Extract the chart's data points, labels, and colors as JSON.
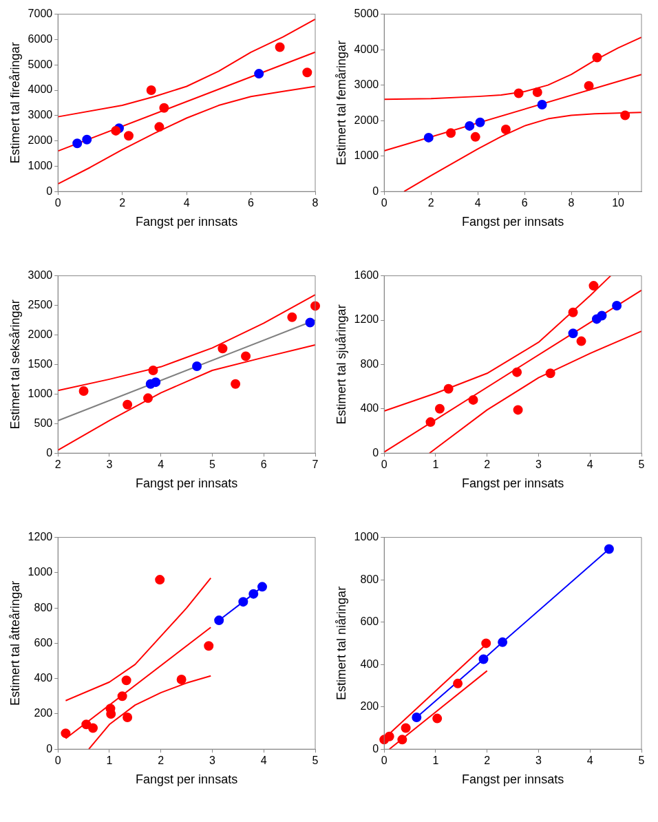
{
  "chart_data": [
    {
      "type": "scatter",
      "xlabel": "Fangst per innsats",
      "ylabel": "Estimert tal fireåringar",
      "xlim": [
        0,
        8
      ],
      "ylim": [
        0,
        7000
      ],
      "xticks": [
        0,
        2,
        4,
        6,
        8
      ],
      "yticks": [
        0,
        1000,
        2000,
        3000,
        4000,
        5000,
        6000,
        7000
      ],
      "grid": false,
      "series": [
        {
          "type": "line",
          "color": "#ff0000",
          "marker": "none",
          "x": [
            0,
            2,
            3,
            4,
            5,
            6,
            7,
            8
          ],
          "values": [
            2950,
            3400,
            3750,
            4150,
            4750,
            5500,
            6100,
            6800
          ]
        },
        {
          "type": "line",
          "color": "#ff0000",
          "marker": "none",
          "x": [
            0,
            1,
            2,
            3,
            4,
            5,
            6,
            7,
            8
          ],
          "values": [
            300,
            950,
            1650,
            2300,
            2900,
            3400,
            3750,
            3950,
            4150
          ]
        },
        {
          "type": "line",
          "color": "#ff0000",
          "marker": "none",
          "x": [
            0,
            8
          ],
          "values": [
            1600,
            5500
          ]
        },
        {
          "type": "scatter",
          "color": "#ff0000",
          "marker": "circle",
          "x": [
            1.8,
            2.2,
            2.9,
            3.15,
            3.3,
            6.9,
            7.75
          ],
          "values": [
            2400,
            2200,
            4000,
            2550,
            3300,
            5700,
            4700
          ]
        },
        {
          "type": "scatter",
          "color": "#0000ff",
          "marker": "circle",
          "x": [
            0.6,
            0.9,
            1.9,
            6.25
          ],
          "values": [
            1900,
            2050,
            2500,
            4650
          ]
        }
      ]
    },
    {
      "type": "scatter",
      "xlabel": "Fangst per innsats",
      "ylabel": "Estimert tal femåringar",
      "xlim": [
        0,
        11
      ],
      "ylim": [
        0,
        5000
      ],
      "xticks": [
        0,
        2,
        4,
        6,
        8,
        10
      ],
      "yticks": [
        0,
        1000,
        2000,
        3000,
        4000,
        5000
      ],
      "grid": false,
      "series": [
        {
          "type": "line",
          "color": "#ff0000",
          "marker": "none",
          "x": [
            0,
            2,
            4,
            5,
            6,
            7,
            8,
            9,
            10,
            11
          ],
          "values": [
            2600,
            2620,
            2680,
            2720,
            2820,
            3000,
            3300,
            3700,
            4050,
            4350
          ]
        },
        {
          "type": "line",
          "color": "#ff0000",
          "marker": "none",
          "x": [
            0.85,
            2,
            4,
            5,
            6,
            7,
            8,
            9,
            10,
            11
          ],
          "values": [
            0,
            450,
            1200,
            1550,
            1850,
            2050,
            2150,
            2190,
            2210,
            2230
          ]
        },
        {
          "type": "line",
          "color": "#ff0000",
          "marker": "none",
          "x": [
            0,
            11
          ],
          "values": [
            1150,
            3300
          ]
        },
        {
          "type": "scatter",
          "color": "#ff0000",
          "marker": "circle",
          "x": [
            2.85,
            3.9,
            5.2,
            5.75,
            6.55,
            8.75,
            9.1,
            10.3
          ],
          "values": [
            1650,
            1540,
            1750,
            2770,
            2800,
            2980,
            3780,
            2150
          ]
        },
        {
          "type": "scatter",
          "color": "#0000ff",
          "marker": "circle",
          "x": [
            1.9,
            3.65,
            4.1,
            6.75
          ],
          "values": [
            1520,
            1850,
            1950,
            2450
          ]
        }
      ]
    },
    {
      "type": "scatter",
      "xlabel": "Fangst per innsats",
      "ylabel": "Estimert tal seksåringar",
      "xlim": [
        2,
        7
      ],
      "ylim": [
        0,
        3000
      ],
      "xticks": [
        2,
        3,
        4,
        5,
        6,
        7
      ],
      "yticks": [
        0,
        500,
        1000,
        1500,
        2000,
        2500,
        3000
      ],
      "grid": false,
      "series": [
        {
          "type": "line",
          "color": "#ff0000",
          "marker": "none",
          "x": [
            2,
            3,
            4,
            5,
            6,
            7
          ],
          "values": [
            1060,
            1250,
            1460,
            1780,
            2200,
            2680
          ]
        },
        {
          "type": "line",
          "color": "#ff0000",
          "marker": "none",
          "x": [
            2,
            3,
            4,
            5,
            6,
            7
          ],
          "values": [
            50,
            550,
            1020,
            1400,
            1620,
            1830
          ]
        },
        {
          "type": "line",
          "color": "#808080",
          "marker": "none",
          "x": [
            2,
            7
          ],
          "values": [
            550,
            2250
          ]
        },
        {
          "type": "scatter",
          "color": "#ff0000",
          "marker": "circle",
          "x": [
            2.5,
            3.35,
            3.75,
            3.85,
            5.2,
            5.45,
            5.65,
            6.55,
            7
          ],
          "values": [
            1050,
            820,
            930,
            1400,
            1770,
            1170,
            1640,
            2300,
            2490
          ]
        },
        {
          "type": "scatter",
          "color": "#0000ff",
          "marker": "circle",
          "x": [
            3.8,
            3.9,
            4.7,
            6.9
          ],
          "values": [
            1170,
            1200,
            1470,
            2210
          ]
        }
      ]
    },
    {
      "type": "scatter",
      "xlabel": "Fangst per innsats",
      "ylabel": "Estimert tal sjuåringar",
      "xlim": [
        0,
        5
      ],
      "ylim": [
        0,
        1600
      ],
      "xticks": [
        0,
        1,
        2,
        3,
        4,
        5
      ],
      "yticks": [
        0,
        400,
        800,
        1200,
        1600
      ],
      "grid": false,
      "series": [
        {
          "type": "line",
          "color": "#ff0000",
          "marker": "none",
          "x": [
            0,
            1,
            2,
            3,
            4,
            4.4
          ],
          "values": [
            380,
            540,
            720,
            1000,
            1420,
            1600
          ]
        },
        {
          "type": "line",
          "color": "#ff0000",
          "marker": "none",
          "x": [
            0.88,
            2,
            3,
            4,
            5
          ],
          "values": [
            0,
            390,
            680,
            900,
            1100
          ]
        },
        {
          "type": "line",
          "color": "#ff0000",
          "marker": "none",
          "x": [
            0,
            5
          ],
          "values": [
            10,
            1470
          ]
        },
        {
          "type": "scatter",
          "color": "#ff0000",
          "marker": "circle",
          "x": [
            0.9,
            1.08,
            1.25,
            1.73,
            2.58,
            2.6,
            3.23,
            3.67,
            3.83,
            4.07
          ],
          "values": [
            280,
            400,
            580,
            480,
            730,
            390,
            720,
            1270,
            1010,
            1510
          ]
        },
        {
          "type": "scatter",
          "color": "#0000ff",
          "marker": "circle",
          "x": [
            3.67,
            4.13,
            4.23,
            4.52
          ],
          "values": [
            1080,
            1210,
            1240,
            1330
          ]
        }
      ]
    },
    {
      "type": "scatter",
      "xlabel": "Fangst per innsats",
      "ylabel": "Estimert tal åtteåringar",
      "xlim": [
        0,
        5
      ],
      "ylim": [
        0,
        1200
      ],
      "xticks": [
        0,
        1,
        2,
        3,
        4,
        5
      ],
      "yticks": [
        0,
        200,
        400,
        600,
        800,
        1000,
        1200
      ],
      "grid": false,
      "series": [
        {
          "type": "line",
          "color": "#ff0000",
          "marker": "none",
          "x": [
            0.15,
            1,
            1.5,
            2,
            2.5,
            2.97
          ],
          "values": [
            275,
            380,
            480,
            640,
            800,
            970
          ]
        },
        {
          "type": "line",
          "color": "#ff0000",
          "marker": "none",
          "x": [
            0.6,
            1,
            1.5,
            2,
            2.5,
            2.97
          ],
          "values": [
            0,
            140,
            250,
            320,
            375,
            415
          ]
        },
        {
          "type": "line",
          "color": "#ff0000",
          "marker": "none",
          "x": [
            0.15,
            2.97
          ],
          "values": [
            60,
            690
          ]
        },
        {
          "type": "scatter",
          "color": "#ff0000",
          "marker": "circle",
          "x": [
            0.15,
            0.55,
            0.68,
            1.02,
            1.03,
            1.25,
            1.33,
            1.35,
            1.98,
            2.4,
            2.93
          ],
          "values": [
            90,
            140,
            120,
            230,
            200,
            300,
            390,
            180,
            960,
            395,
            585
          ]
        },
        {
          "type": "line",
          "color": "#0000ff",
          "marker": "circle",
          "x": [
            3.13,
            3.6,
            3.8,
            3.97
          ],
          "values": [
            730,
            835,
            880,
            920
          ]
        }
      ]
    },
    {
      "type": "scatter",
      "xlabel": "Fangst per innsats",
      "ylabel": "Estimert tal niåringar",
      "xlim": [
        0,
        5
      ],
      "ylim": [
        0,
        1000
      ],
      "xticks": [
        0,
        1,
        2,
        3,
        4,
        5
      ],
      "yticks": [
        0,
        200,
        400,
        600,
        800,
        1000
      ],
      "grid": false,
      "series": [
        {
          "type": "line",
          "color": "#ff0000",
          "marker": "none",
          "x": [
            0,
            2
          ],
          "values": [
            50,
            500
          ]
        },
        {
          "type": "line",
          "color": "#ff0000",
          "marker": "none",
          "x": [
            0.1,
            2
          ],
          "values": [
            0,
            370
          ]
        },
        {
          "type": "scatter",
          "color": "#ff0000",
          "marker": "circle",
          "x": [
            0,
            0.1,
            0.35,
            0.42,
            1.03,
            1.43,
            1.98
          ],
          "values": [
            45,
            60,
            45,
            100,
            145,
            310,
            500
          ]
        },
        {
          "type": "line",
          "color": "#0000ff",
          "marker": "circle",
          "x": [
            0.63,
            1.93,
            2.3,
            4.37
          ],
          "values": [
            150,
            425,
            505,
            945
          ]
        }
      ]
    }
  ]
}
